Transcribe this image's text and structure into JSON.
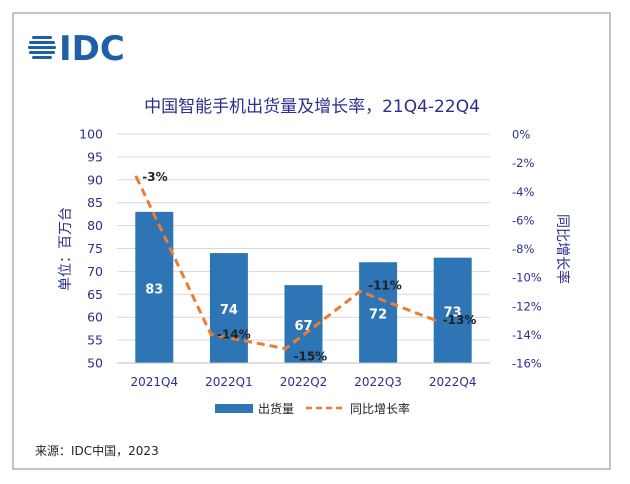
{
  "logo": {
    "text": "IDC"
  },
  "chart_data": {
    "type": "bar+line",
    "title": "中国智能手机出货量及增长率，21Q4-22Q4",
    "categories": [
      "2021Q4",
      "2022Q1",
      "2022Q2",
      "2022Q3",
      "2022Q4"
    ],
    "series": [
      {
        "name": "出货量",
        "type": "bar",
        "axis": "left",
        "values": [
          83,
          74,
          67,
          72,
          73
        ],
        "color": "#2e75b6"
      },
      {
        "name": "同比增长率",
        "type": "line",
        "axis": "right",
        "values": [
          -3,
          -14,
          -15,
          -11,
          -13
        ],
        "value_labels": [
          "-3%",
          "-14%",
          "-15%",
          "-11%",
          "-13%"
        ],
        "color": "#ed7d31",
        "style": "dashed"
      }
    ],
    "y_left": {
      "label": "单位：百万台",
      "range": [
        50,
        100
      ],
      "step": 5,
      "ticks": [
        "50",
        "55",
        "60",
        "65",
        "70",
        "75",
        "80",
        "85",
        "90",
        "95",
        "100"
      ]
    },
    "y_right": {
      "label": "同比增长率",
      "range": [
        -16,
        0
      ],
      "step": 2,
      "ticks": [
        "-16%",
        "-14%",
        "-12%",
        "-10%",
        "-8%",
        "-6%",
        "-4%",
        "-2%",
        "0%"
      ]
    },
    "grid": true,
    "legend_position": "bottom"
  },
  "source": "来源：IDC中国，2023",
  "colors": {
    "axis_text": "#2b2f8f",
    "title": "#2b2f8f",
    "bar": "#2e75b6",
    "line": "#ed7d31",
    "grid": "#d9d9d9",
    "border": "#888888",
    "logo": "#1e5fa8"
  }
}
